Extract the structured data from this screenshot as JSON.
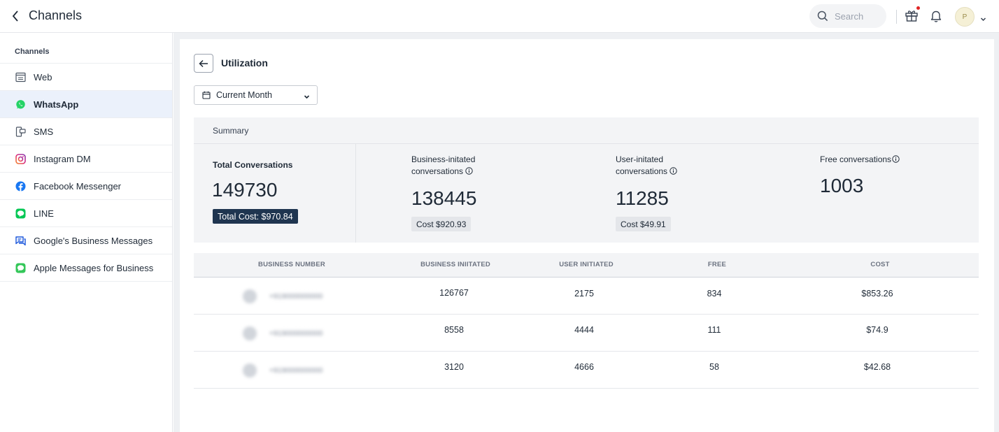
{
  "header": {
    "title": "Channels",
    "search_placeholder": "Search",
    "avatar_initial": "P"
  },
  "sidebar": {
    "heading": "Channels",
    "items": [
      {
        "label": "Web",
        "icon": "web-window-icon",
        "active": false
      },
      {
        "label": "WhatsApp",
        "icon": "whatsapp-icon",
        "active": true
      },
      {
        "label": "SMS",
        "icon": "sms-icon",
        "active": false
      },
      {
        "label": "Instagram DM",
        "icon": "instagram-icon",
        "active": false
      },
      {
        "label": "Facebook Messenger",
        "icon": "facebook-icon",
        "active": false
      },
      {
        "label": "LINE",
        "icon": "line-icon",
        "active": false
      },
      {
        "label": "Google's Business Messages",
        "icon": "google-business-messages-icon",
        "active": false
      },
      {
        "label": "Apple Messages for Business",
        "icon": "apple-messages-icon",
        "active": false
      }
    ]
  },
  "main": {
    "title": "Utilization",
    "period_select": "Current Month",
    "summary": {
      "title": "Summary",
      "total": {
        "label": "Total Conversations",
        "value": "149730",
        "cost": "Total Cost: $970.84"
      },
      "business": {
        "label_line1": "Business-initated",
        "label_line2": "conversations",
        "value": "138445",
        "cost": "Cost $920.93"
      },
      "user": {
        "label_line1": "User-initated",
        "label_line2": "conversations",
        "value": "11285",
        "cost": "Cost $49.91"
      },
      "free": {
        "label": "Free conversations",
        "value": "1003"
      }
    },
    "table": {
      "columns": [
        "BUSINESS NUMBER",
        "BUSINESS INIITATED",
        "USER INITIATED",
        "FREE",
        "COST"
      ],
      "rows": [
        {
          "number": "+919000000000",
          "business": "126767",
          "user": "2175",
          "free": "834",
          "cost": "$853.26"
        },
        {
          "number": "+919000000000",
          "business": "8558",
          "user": "4444",
          "free": "111",
          "cost": "$74.9"
        },
        {
          "number": "+919000000000",
          "business": "3120",
          "user": "4666",
          "free": "58",
          "cost": "$42.68"
        }
      ]
    }
  },
  "colors": {
    "accent_active": "#ebf1fb",
    "total_cost_badge": "#1f3550",
    "whatsapp": "#25d366",
    "facebook": "#1877f2",
    "line": "#06c755",
    "notification_dot": "#e02424"
  }
}
